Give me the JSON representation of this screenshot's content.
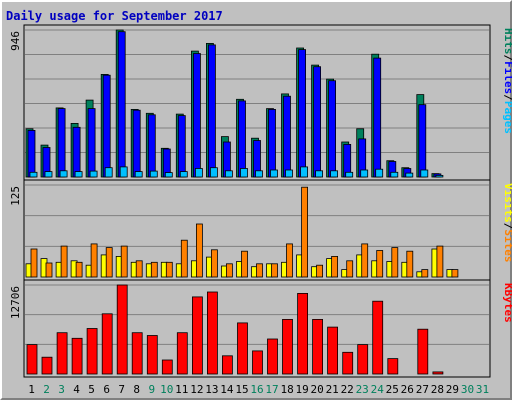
{
  "colors": {
    "hits": "#00805c",
    "files": "#0000ff",
    "pages": "#00c0ff",
    "visits": "#ffff00",
    "sites": "#ff8000",
    "kbytes": "#ff0000",
    "weekday_label": "#000000",
    "weekend_label": "#00805c",
    "background": "#c0c0c0",
    "plot_background": "#c0c0c0",
    "grid": "#808080"
  },
  "chart_data": {
    "type": "bar",
    "title": "Daily usage for September 2017",
    "categories": [
      "1",
      "2",
      "3",
      "4",
      "5",
      "6",
      "7",
      "8",
      "9",
      "10",
      "11",
      "12",
      "13",
      "14",
      "15",
      "16",
      "17",
      "18",
      "19",
      "20",
      "21",
      "22",
      "23",
      "24",
      "25",
      "26",
      "27",
      "28",
      "29",
      "30",
      "31"
    ],
    "weekend_days": [
      "2",
      "3",
      "9",
      "10",
      "16",
      "17",
      "23",
      "24",
      "30",
      "31"
    ],
    "panels": [
      {
        "id": "hits_files_pages",
        "y_max_label": "946",
        "y_max": 946,
        "legend": [
          {
            "key": "pages",
            "label": "Pages"
          },
          {
            "key": "sep1",
            "label": "/"
          },
          {
            "key": "files",
            "label": "Files"
          },
          {
            "key": "sep2",
            "label": "/"
          },
          {
            "key": "hits",
            "label": "Hits"
          }
        ],
        "series": [
          {
            "name": "Hits",
            "color_key": "hits",
            "values": [
              310,
              205,
              445,
              345,
              495,
              660,
              946,
              435,
              410,
              185,
              405,
              810,
              860,
              260,
              500,
              250,
              440,
              535,
              830,
              720,
              630,
              225,
              310,
              790,
              105,
              60,
              530,
              22,
              0,
              0,
              0
            ]
          },
          {
            "name": "Files",
            "color_key": "files",
            "values": [
              300,
              190,
              440,
              320,
              440,
              655,
              935,
              430,
              400,
              180,
              395,
              795,
              850,
              225,
              490,
              235,
              435,
              520,
              820,
              710,
              620,
              210,
              245,
              765,
              100,
              55,
              465,
              20,
              0,
              0,
              0
            ]
          },
          {
            "name": "Pages",
            "color_key": "pages",
            "values": [
              30,
              35,
              40,
              35,
              38,
              60,
              65,
              35,
              38,
              28,
              35,
              55,
              60,
              40,
              55,
              40,
              45,
              45,
              65,
              40,
              40,
              30,
              45,
              50,
              30,
              25,
              45,
              10,
              0,
              0,
              0
            ]
          }
        ]
      },
      {
        "id": "visits_sites",
        "y_max_label": "125",
        "y_max": 125,
        "legend": [
          {
            "key": "sites",
            "label": "Sites"
          },
          {
            "key": "sep3",
            "label": "/"
          },
          {
            "key": "visits",
            "label": "Visits"
          }
        ],
        "series": [
          {
            "name": "Visits",
            "color_key": "visits",
            "values": [
              18,
              25,
              20,
              22,
              16,
              30,
              28,
              20,
              18,
              20,
              18,
              22,
              27,
              15,
              21,
              14,
              18,
              20,
              30,
              14,
              25,
              10,
              30,
              22,
              21,
              20,
              7,
              38,
              10,
              0,
              0
            ]
          },
          {
            "name": "Sites",
            "color_key": "sites",
            "values": [
              38,
              19,
              42,
              20,
              45,
              40,
              42,
              22,
              20,
              20,
              50,
              72,
              37,
              18,
              35,
              18,
              18,
              45,
              122,
              16,
              28,
              22,
              45,
              36,
              40,
              35,
              10,
              42,
              10,
              0,
              0
            ]
          }
        ]
      },
      {
        "id": "kbytes",
        "y_max_label": "12706",
        "y_max": 12706,
        "legend": [
          {
            "key": "kbytes",
            "label": "KBytes"
          }
        ],
        "series": [
          {
            "name": "KBytes",
            "color_key": "kbytes",
            "values": [
              4200,
              2400,
              5900,
              5100,
              6500,
              8600,
              12706,
              5900,
              5500,
              2000,
              5900,
              11000,
              11700,
              2600,
              7300,
              3300,
              5000,
              7800,
              11500,
              7800,
              6700,
              3100,
              4200,
              10400,
              2200,
              0,
              6400,
              300,
              0,
              0,
              0
            ]
          }
        ]
      }
    ]
  }
}
